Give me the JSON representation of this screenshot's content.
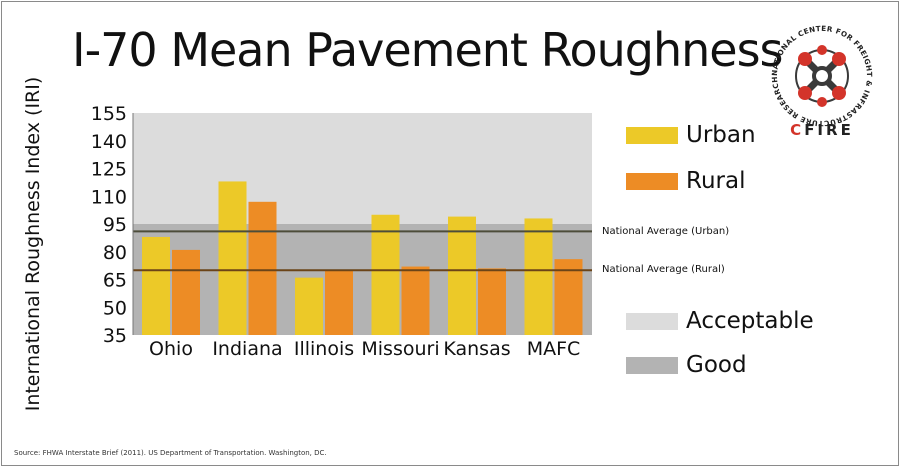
{
  "title": "I-70 Mean Pavement Roughness",
  "source": "Source: FHWA Interstate Brief (2011). US Department of Transportation. Washington, DC.",
  "logo": {
    "ring_text": "NATIONAL CENTER FOR FREIGHT & INFRASTRUCTURE RESEARCH & EDUCATION",
    "name": "CFIRE"
  },
  "colors": {
    "urban": "#ecc928",
    "rural": "#ed8c25",
    "acceptable": "#dcdcdc",
    "good": "#b3b3b3",
    "avg_urban_line": "#4d4d3a",
    "avg_rural_line": "#6b4418",
    "logo_red": "#d3342a"
  },
  "legend": {
    "urban": "Urban",
    "rural": "Rural",
    "acceptable": "Acceptable",
    "good": "Good"
  },
  "reference_lines": {
    "urban": {
      "label": "National Average (Urban)",
      "value": 91
    },
    "rural": {
      "label": "National Average (Rural)",
      "value": 70
    }
  },
  "chart_data": {
    "type": "bar",
    "title": "I-70 Mean Pavement Roughness",
    "ylabel": "International Roughness Index (IRI)",
    "xlabel": "",
    "categories": [
      "Ohio",
      "Indiana",
      "Illinois",
      "Missouri",
      "Kansas",
      "MAFC"
    ],
    "series": [
      {
        "name": "Urban",
        "values": [
          88,
          118,
          66,
          100,
          99,
          98
        ]
      },
      {
        "name": "Rural",
        "values": [
          81,
          107,
          70,
          72,
          71,
          76
        ]
      }
    ],
    "ylim": [
      35,
      155
    ],
    "yticks": [
      35,
      50,
      65,
      80,
      95,
      110,
      125,
      140,
      155
    ],
    "background_bands": [
      {
        "name": "Acceptable",
        "range": [
          95,
          155
        ]
      },
      {
        "name": "Good",
        "range": [
          35,
          95
        ]
      }
    ],
    "legend_position": "right",
    "grid": false
  }
}
